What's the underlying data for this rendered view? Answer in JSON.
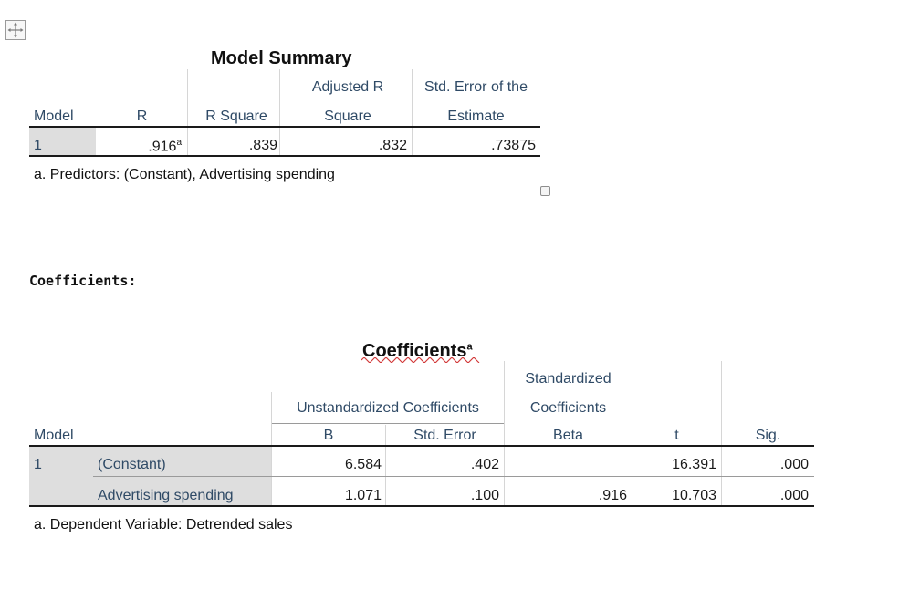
{
  "model_summary": {
    "title": "Model Summary",
    "headers": {
      "model": "Model",
      "r": "R",
      "r_square": "R Square",
      "adj_r_line1": "Adjusted R",
      "adj_r_line2": "Square",
      "std_err_line1": "Std. Error of the",
      "std_err_line2": "Estimate"
    },
    "row": {
      "model": "1",
      "r": ".916",
      "r_sup": "a",
      "r_square": ".839",
      "adj_r_square": ".832",
      "std_err": ".73875"
    },
    "footnote": "a. Predictors: (Constant), Advertising spending"
  },
  "section_label": "Coefficients:",
  "coefficients": {
    "title": "Coefficients",
    "title_sup": "a",
    "headers": {
      "unstd_group": "Unstandardized Coefficients",
      "std_line1": "Standardized",
      "std_line2": "Coefficients",
      "model": "Model",
      "b": "B",
      "std_error": "Std. Error",
      "beta": "Beta",
      "t": "t",
      "sig": "Sig."
    },
    "model": "1",
    "rows": [
      {
        "label": "(Constant)",
        "b": "6.584",
        "std_error": ".402",
        "beta": "",
        "t": "16.391",
        "sig": ".000"
      },
      {
        "label": "Advertising spending",
        "b": "1.071",
        "std_error": ".100",
        "beta": ".916",
        "t": "10.703",
        "sig": ".000"
      }
    ],
    "footnote": "a. Dependent Variable: Detrended sales"
  },
  "icons": {
    "move_handle": "move-arrows-icon",
    "resize_handle": "resize-handle-icon"
  }
}
